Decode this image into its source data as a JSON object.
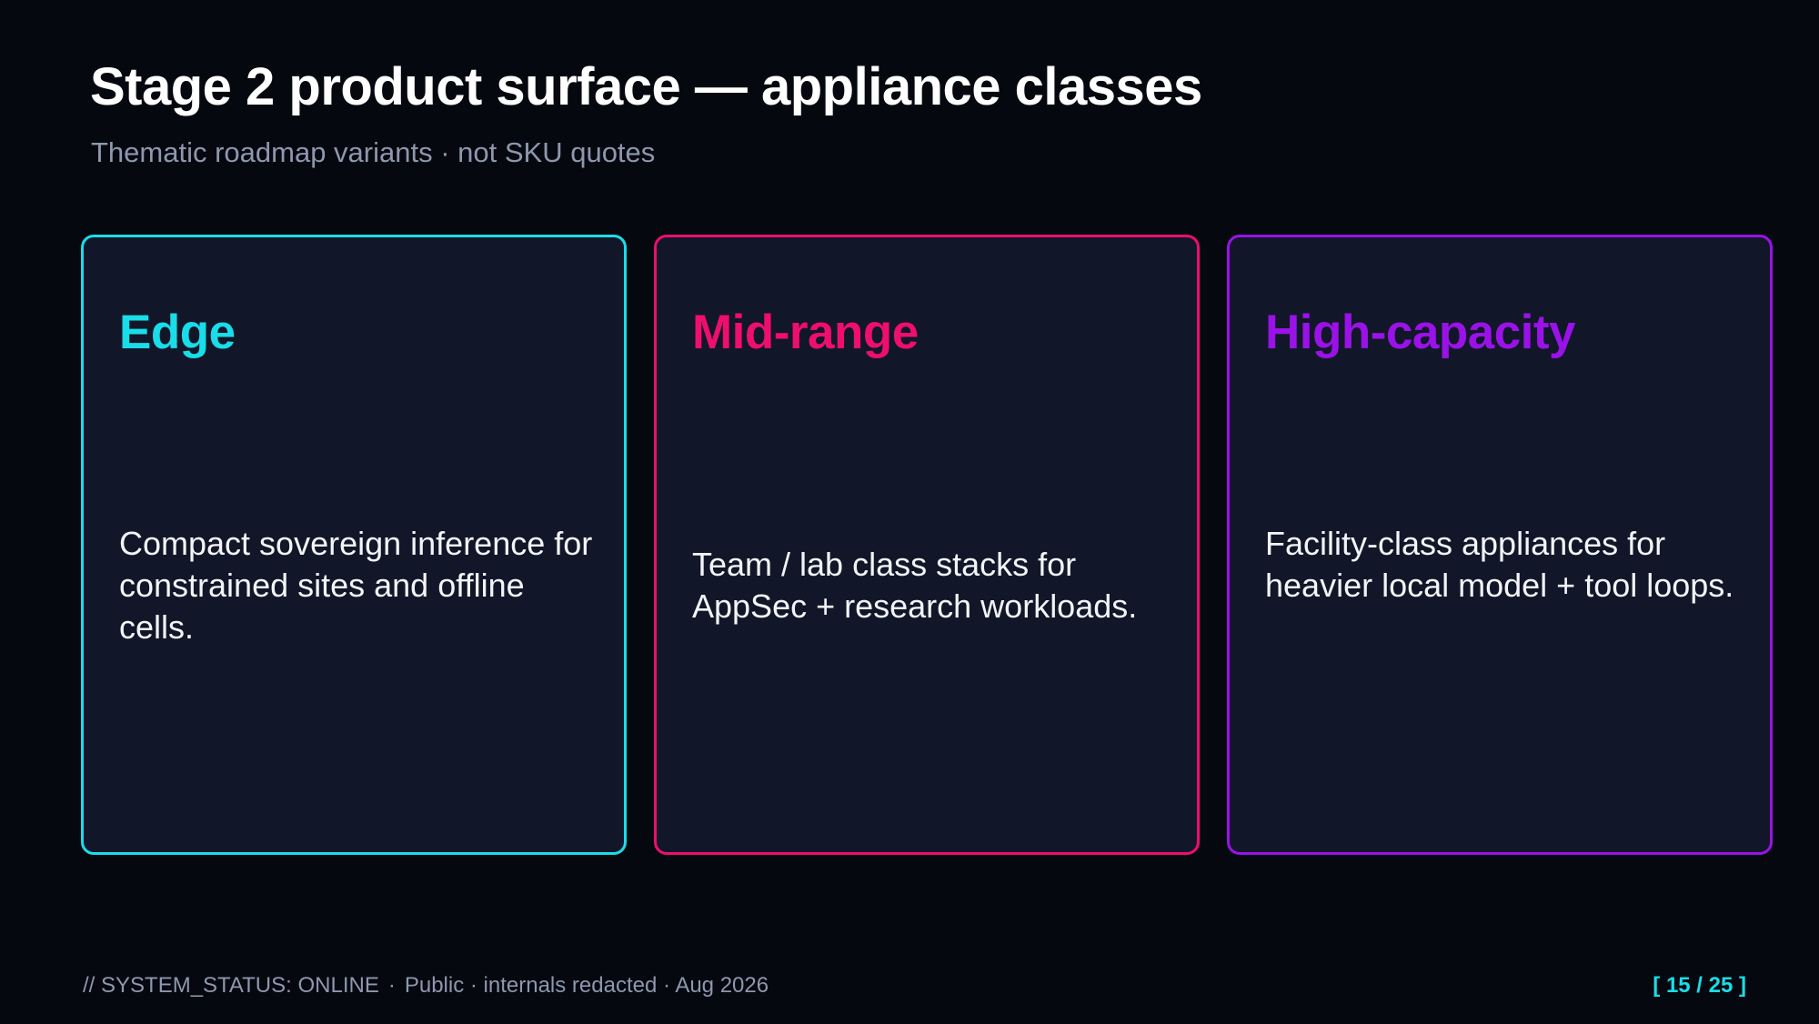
{
  "header": {
    "title": "Stage 2 product surface — appliance classes",
    "subtitle": "Thematic roadmap variants · not SKU quotes"
  },
  "cards": [
    {
      "title": "Edge",
      "body": "Compact sovereign inference for constrained sites and offline cells.",
      "accent": "#19dde8"
    },
    {
      "title": "Mid-range",
      "body": "Team / lab class stacks for AppSec + research workloads.",
      "accent": "#ee0e6c"
    },
    {
      "title": "High-capacity",
      "body": "Facility-class appliances for heavier local model + tool loops.",
      "accent": "#9a12e8"
    }
  ],
  "footer": {
    "status": "// SYSTEM_STATUS: ONLINE",
    "separator": "·",
    "note": "Public · internals redacted · Aug 2026",
    "page": "[ 15 / 25 ]"
  },
  "colors": {
    "background": "#05080f",
    "card_background": "#111729",
    "muted_text": "#8d97ae"
  }
}
